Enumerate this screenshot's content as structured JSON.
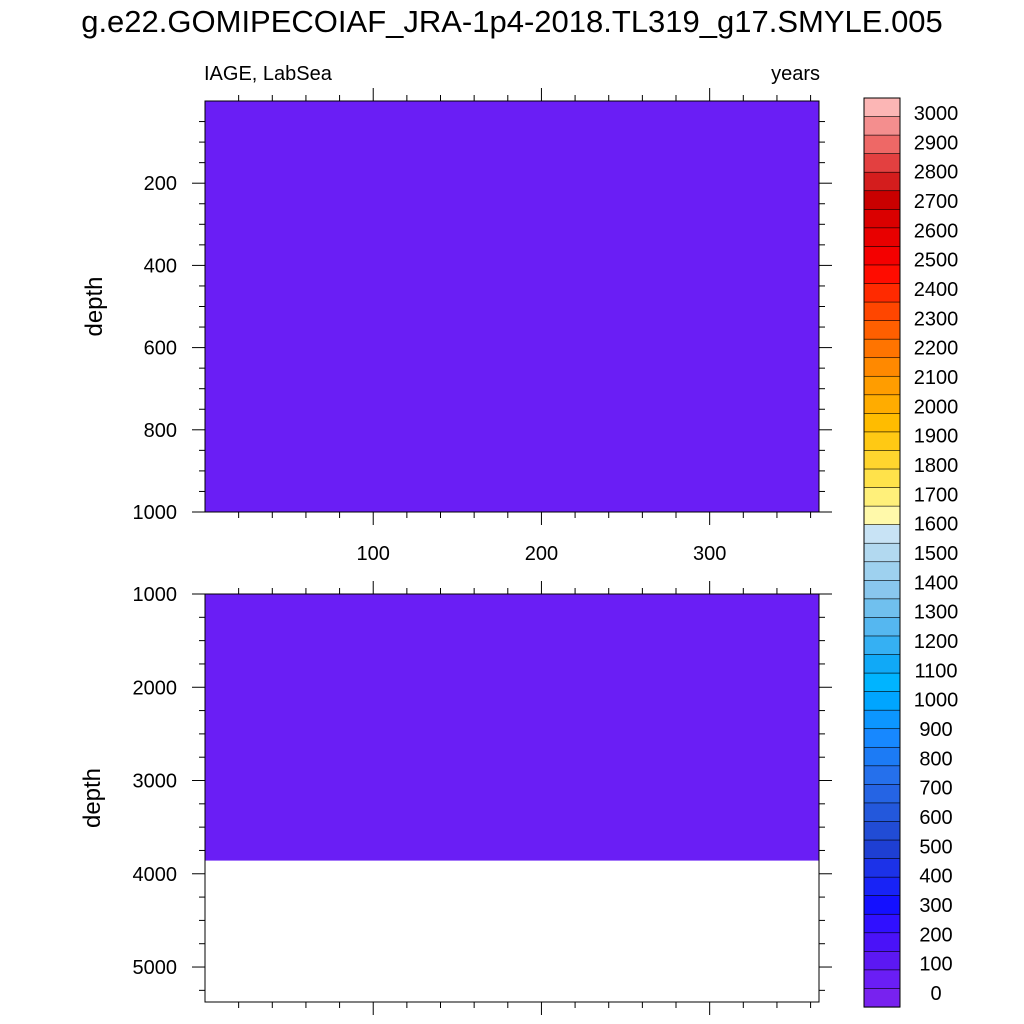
{
  "title": "g.e22.GOMIPECOIAF_JRA-1p4-2018.TL319_g17.SMYLE.005",
  "left_label": "IAGE, LabSea",
  "right_label": "years",
  "chart_data": [
    {
      "type": "heatmap",
      "panel": "upper",
      "variable": "IAGE",
      "region": "LabSea",
      "units": "years",
      "ylabel": "depth",
      "y_reversed": true,
      "xlim": [
        0,
        365
      ],
      "ylim": [
        0,
        1000
      ],
      "x_ticks": [
        100,
        200,
        300
      ],
      "y_ticks": [
        200,
        400,
        600,
        800,
        1000
      ],
      "field": [
        {
          "x_range": [
            0,
            365
          ],
          "depth_range": [
            0,
            1000
          ],
          "value_bin": "0-100",
          "color": "#6a1ef5"
        }
      ]
    },
    {
      "type": "heatmap",
      "panel": "lower",
      "variable": "IAGE",
      "region": "LabSea",
      "units": "years",
      "ylabel": "depth",
      "y_reversed": true,
      "xlim": [
        0,
        365
      ],
      "ylim": [
        1000,
        5375
      ],
      "x_ticks": [],
      "y_ticks": [
        1000,
        2000,
        3000,
        4000,
        5000
      ],
      "field": [
        {
          "x_range": [
            0,
            365
          ],
          "depth_range": [
            1000,
            3860
          ],
          "value_bin": "0-100",
          "color": "#6a1ef5"
        },
        {
          "x_range": [
            0,
            365
          ],
          "depth_range": [
            3860,
            5375
          ],
          "value_bin": "missing",
          "color": "#ffffff"
        }
      ]
    }
  ],
  "colorbar": {
    "labels": [
      "3000",
      "2900",
      "2800",
      "2700",
      "2600",
      "2500",
      "2400",
      "2300",
      "2200",
      "2100",
      "2000",
      "1900",
      "1800",
      "1700",
      "1600",
      "1500",
      "1400",
      "1300",
      "1200",
      "1100",
      "1000",
      "900",
      "800",
      "700",
      "600",
      "500",
      "400",
      "300",
      "200",
      "100",
      "0"
    ],
    "colors": [
      "#fcb6b5",
      "#f48e8e",
      "#ee6866",
      "#e34040",
      "#d41d1d",
      "#c90000",
      "#da0000",
      "#e80000",
      "#f40000",
      "#ff0c00",
      "#ff2a00",
      "#ff4600",
      "#ff5f00",
      "#ff7400",
      "#ff8900",
      "#ff9d00",
      "#ffac00",
      "#ffbc00",
      "#ffc914",
      "#ffd52e",
      "#ffe24a",
      "#fff07a",
      "#fff9aa",
      "#c8e3f5",
      "#b2d9f0",
      "#9ed1ef",
      "#89c7ee",
      "#70c0ee",
      "#55b7f0",
      "#35b0f3",
      "#10a9f7",
      "#00b4ff",
      "#00a5ff",
      "#0c96ff",
      "#1788ff",
      "#1c7bf5",
      "#2570ec",
      "#2564e4",
      "#2358dc",
      "#214cd5",
      "#1e3fd3",
      "#1c32e8",
      "#1823f6",
      "#1410ff",
      "#3010ff",
      "#4a12f8",
      "#5c18f3",
      "#6a1ef5",
      "#7822ef"
    ]
  }
}
